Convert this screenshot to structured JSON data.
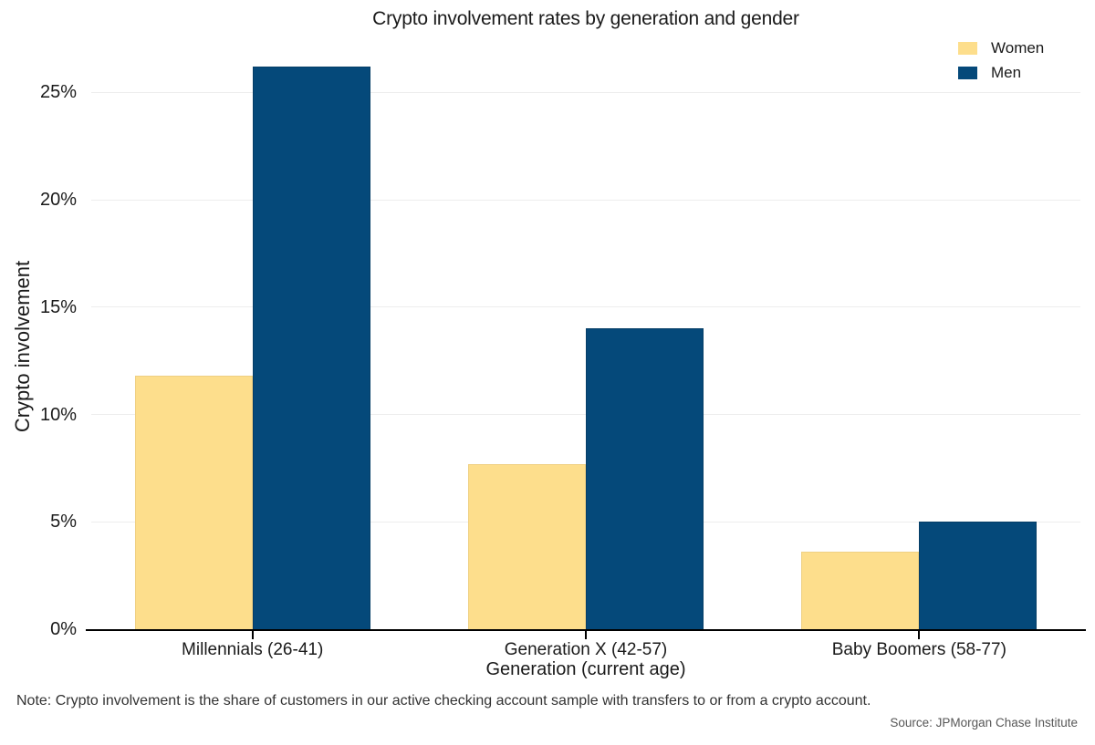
{
  "chart_data": {
    "type": "bar",
    "title": "Crypto involvement rates by generation and gender",
    "categories": [
      "Millennials (26-41)",
      "Generation X (42-57)",
      "Baby Boomers (58-77)"
    ],
    "series": [
      {
        "name": "Women",
        "color": "#FDDE8C",
        "border_color": "#efd083",
        "values": [
          11.8,
          7.7,
          3.6
        ]
      },
      {
        "name": "Men",
        "color": "#05497A",
        "border_color": "#063e67",
        "values": [
          26.2,
          14.0,
          5.0
        ]
      }
    ],
    "xlabel": "Generation (current age)",
    "ylabel": "Crypto involvement",
    "y_tick_values": [
      0,
      5,
      10,
      15,
      20,
      25
    ],
    "y_tick_labels": [
      "0%",
      "5%",
      "10%",
      "15%",
      "20%",
      "25%"
    ],
    "ylim": [
      0,
      27.4
    ],
    "grid": "horizontal",
    "legend_position": "top-right",
    "colors": {
      "axis_line": "#000000",
      "gridline": "#ededed",
      "women": "#FDDE8C",
      "men": "#05497A"
    },
    "note": "Note: Crypto involvement is the share of customers in our active checking account sample with transfers to or from a crypto account.",
    "source": "Source: JPMorgan Chase Institute"
  }
}
